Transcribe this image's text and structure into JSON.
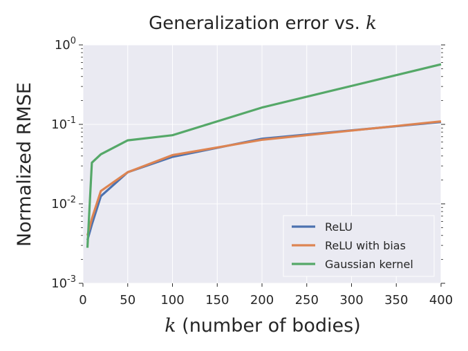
{
  "chart_data": {
    "type": "line",
    "title": "Generalization error vs. ",
    "title_math": "k",
    "xlabel_math": "k",
    "xlabel": " (number of bodies)",
    "ylabel": "Normalized RMSE",
    "xlim": [
      0,
      400
    ],
    "ylim": [
      0.001,
      1
    ],
    "yscale": "log",
    "grid": true,
    "legend_position": "lower-right",
    "xticks": [
      0,
      50,
      100,
      150,
      200,
      250,
      300,
      350,
      400
    ],
    "yticks": [
      {
        "value": 1,
        "base": "10",
        "exp": "0"
      },
      {
        "value": 0.1,
        "base": "10",
        "exp": "-1"
      },
      {
        "value": 0.01,
        "base": "10",
        "exp": "-2"
      },
      {
        "value": 0.001,
        "base": "10",
        "exp": "-3"
      }
    ],
    "series": [
      {
        "name": "ReLU",
        "color": "#4c72b0",
        "x": [
          5,
          10,
          20,
          50,
          100,
          200,
          400
        ],
        "y": [
          0.0035,
          0.0055,
          0.0125,
          0.025,
          0.039,
          0.066,
          0.107
        ]
      },
      {
        "name": "ReLU with bias",
        "color": "#dd8452",
        "x": [
          5,
          10,
          20,
          50,
          100,
          200,
          400
        ],
        "y": [
          0.004,
          0.0065,
          0.0145,
          0.025,
          0.041,
          0.064,
          0.109
        ]
      },
      {
        "name": "Gaussian kernel",
        "color": "#55a868",
        "x": [
          5,
          10,
          20,
          50,
          100,
          200,
          400
        ],
        "y": [
          0.0028,
          0.033,
          0.042,
          0.063,
          0.073,
          0.163,
          0.57
        ]
      }
    ]
  }
}
